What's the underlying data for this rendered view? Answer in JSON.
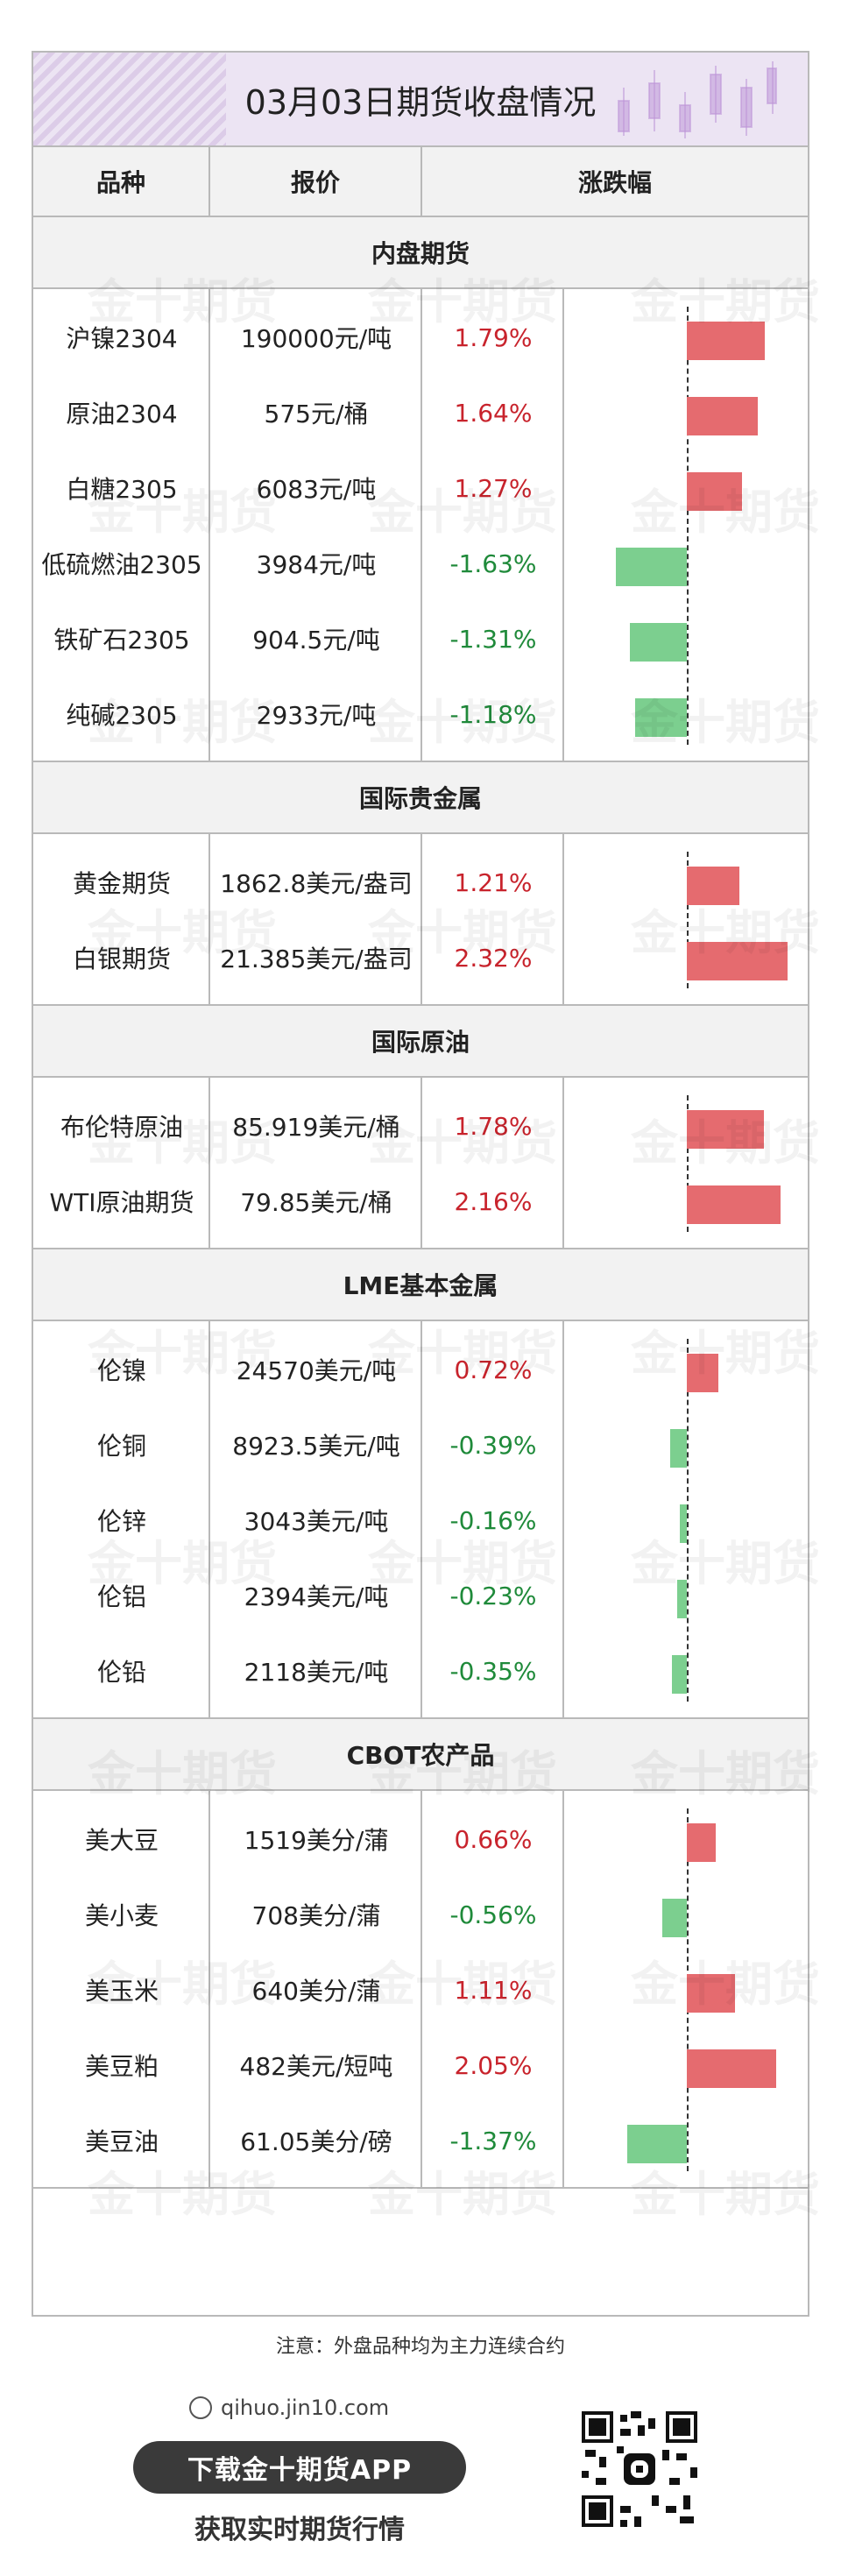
{
  "title": "03月03日期货收盘情况",
  "header": {
    "col1": "品种",
    "col2": "报价",
    "col3": "涨跌幅"
  },
  "watermark": "金十期货",
  "chart_data": {
    "type": "bar",
    "axis_min": -2.5,
    "axis_max": 2.5,
    "colors": {
      "up": "#e56b6f",
      "down": "#7ccf8f",
      "up_text": "#c8232c",
      "down_text": "#1f8a3a"
    },
    "sections": [
      {
        "title": "内盘期货",
        "rows": [
          {
            "name": "沪镍2304",
            "price": "190000元/吨",
            "pct_text": "1.79%",
            "value": 1.79
          },
          {
            "name": "原油2304",
            "price": "575元/桶",
            "pct_text": "1.64%",
            "value": 1.64
          },
          {
            "name": "白糖2305",
            "price": "6083元/吨",
            "pct_text": "1.27%",
            "value": 1.27
          },
          {
            "name": "低硫燃油2305",
            "price": "3984元/吨",
            "pct_text": "-1.63%",
            "value": -1.63
          },
          {
            "name": "铁矿石2305",
            "price": "904.5元/吨",
            "pct_text": "-1.31%",
            "value": -1.31
          },
          {
            "name": "纯碱2305",
            "price": "2933元/吨",
            "pct_text": "-1.18%",
            "value": -1.18
          }
        ]
      },
      {
        "title": "国际贵金属",
        "rows": [
          {
            "name": "黄金期货",
            "price": "1862.8美元/盎司",
            "pct_text": "1.21%",
            "value": 1.21
          },
          {
            "name": "白银期货",
            "price": "21.385美元/盎司",
            "pct_text": "2.32%",
            "value": 2.32
          }
        ]
      },
      {
        "title": "国际原油",
        "rows": [
          {
            "name": "布伦特原油",
            "price": "85.919美元/桶",
            "pct_text": "1.78%",
            "value": 1.78
          },
          {
            "name": "WTI原油期货",
            "price": "79.85美元/桶",
            "pct_text": "2.16%",
            "value": 2.16
          }
        ]
      },
      {
        "title": "LME基本金属",
        "rows": [
          {
            "name": "伦镍",
            "price": "24570美元/吨",
            "pct_text": "0.72%",
            "value": 0.72
          },
          {
            "name": "伦铜",
            "price": "8923.5美元/吨",
            "pct_text": "-0.39%",
            "value": -0.39
          },
          {
            "name": "伦锌",
            "price": "3043美元/吨",
            "pct_text": "-0.16%",
            "value": -0.16
          },
          {
            "name": "伦铝",
            "price": "2394美元/吨",
            "pct_text": "-0.23%",
            "value": -0.23
          },
          {
            "name": "伦铅",
            "price": "2118美元/吨",
            "pct_text": "-0.35%",
            "value": -0.35
          }
        ]
      },
      {
        "title": "CBOT农产品",
        "rows": [
          {
            "name": "美大豆",
            "price": "1519美分/蒲",
            "pct_text": "0.66%",
            "value": 0.66
          },
          {
            "name": "美小麦",
            "price": "708美分/蒲",
            "pct_text": "-0.56%",
            "value": -0.56
          },
          {
            "name": "美玉米",
            "price": "640美分/蒲",
            "pct_text": "1.11%",
            "value": 1.11
          },
          {
            "name": "美豆粕",
            "price": "482美元/短吨",
            "pct_text": "2.05%",
            "value": 2.05
          },
          {
            "name": "美豆油",
            "price": "61.05美分/磅",
            "pct_text": "-1.37%",
            "value": -1.37
          }
        ]
      }
    ]
  },
  "footer": {
    "note": "注意：外盘品种均为主力连续合约",
    "site": "qihuo.jin10.com",
    "button": "下载金十期货APP",
    "subtitle": "获取实时期货行情"
  }
}
